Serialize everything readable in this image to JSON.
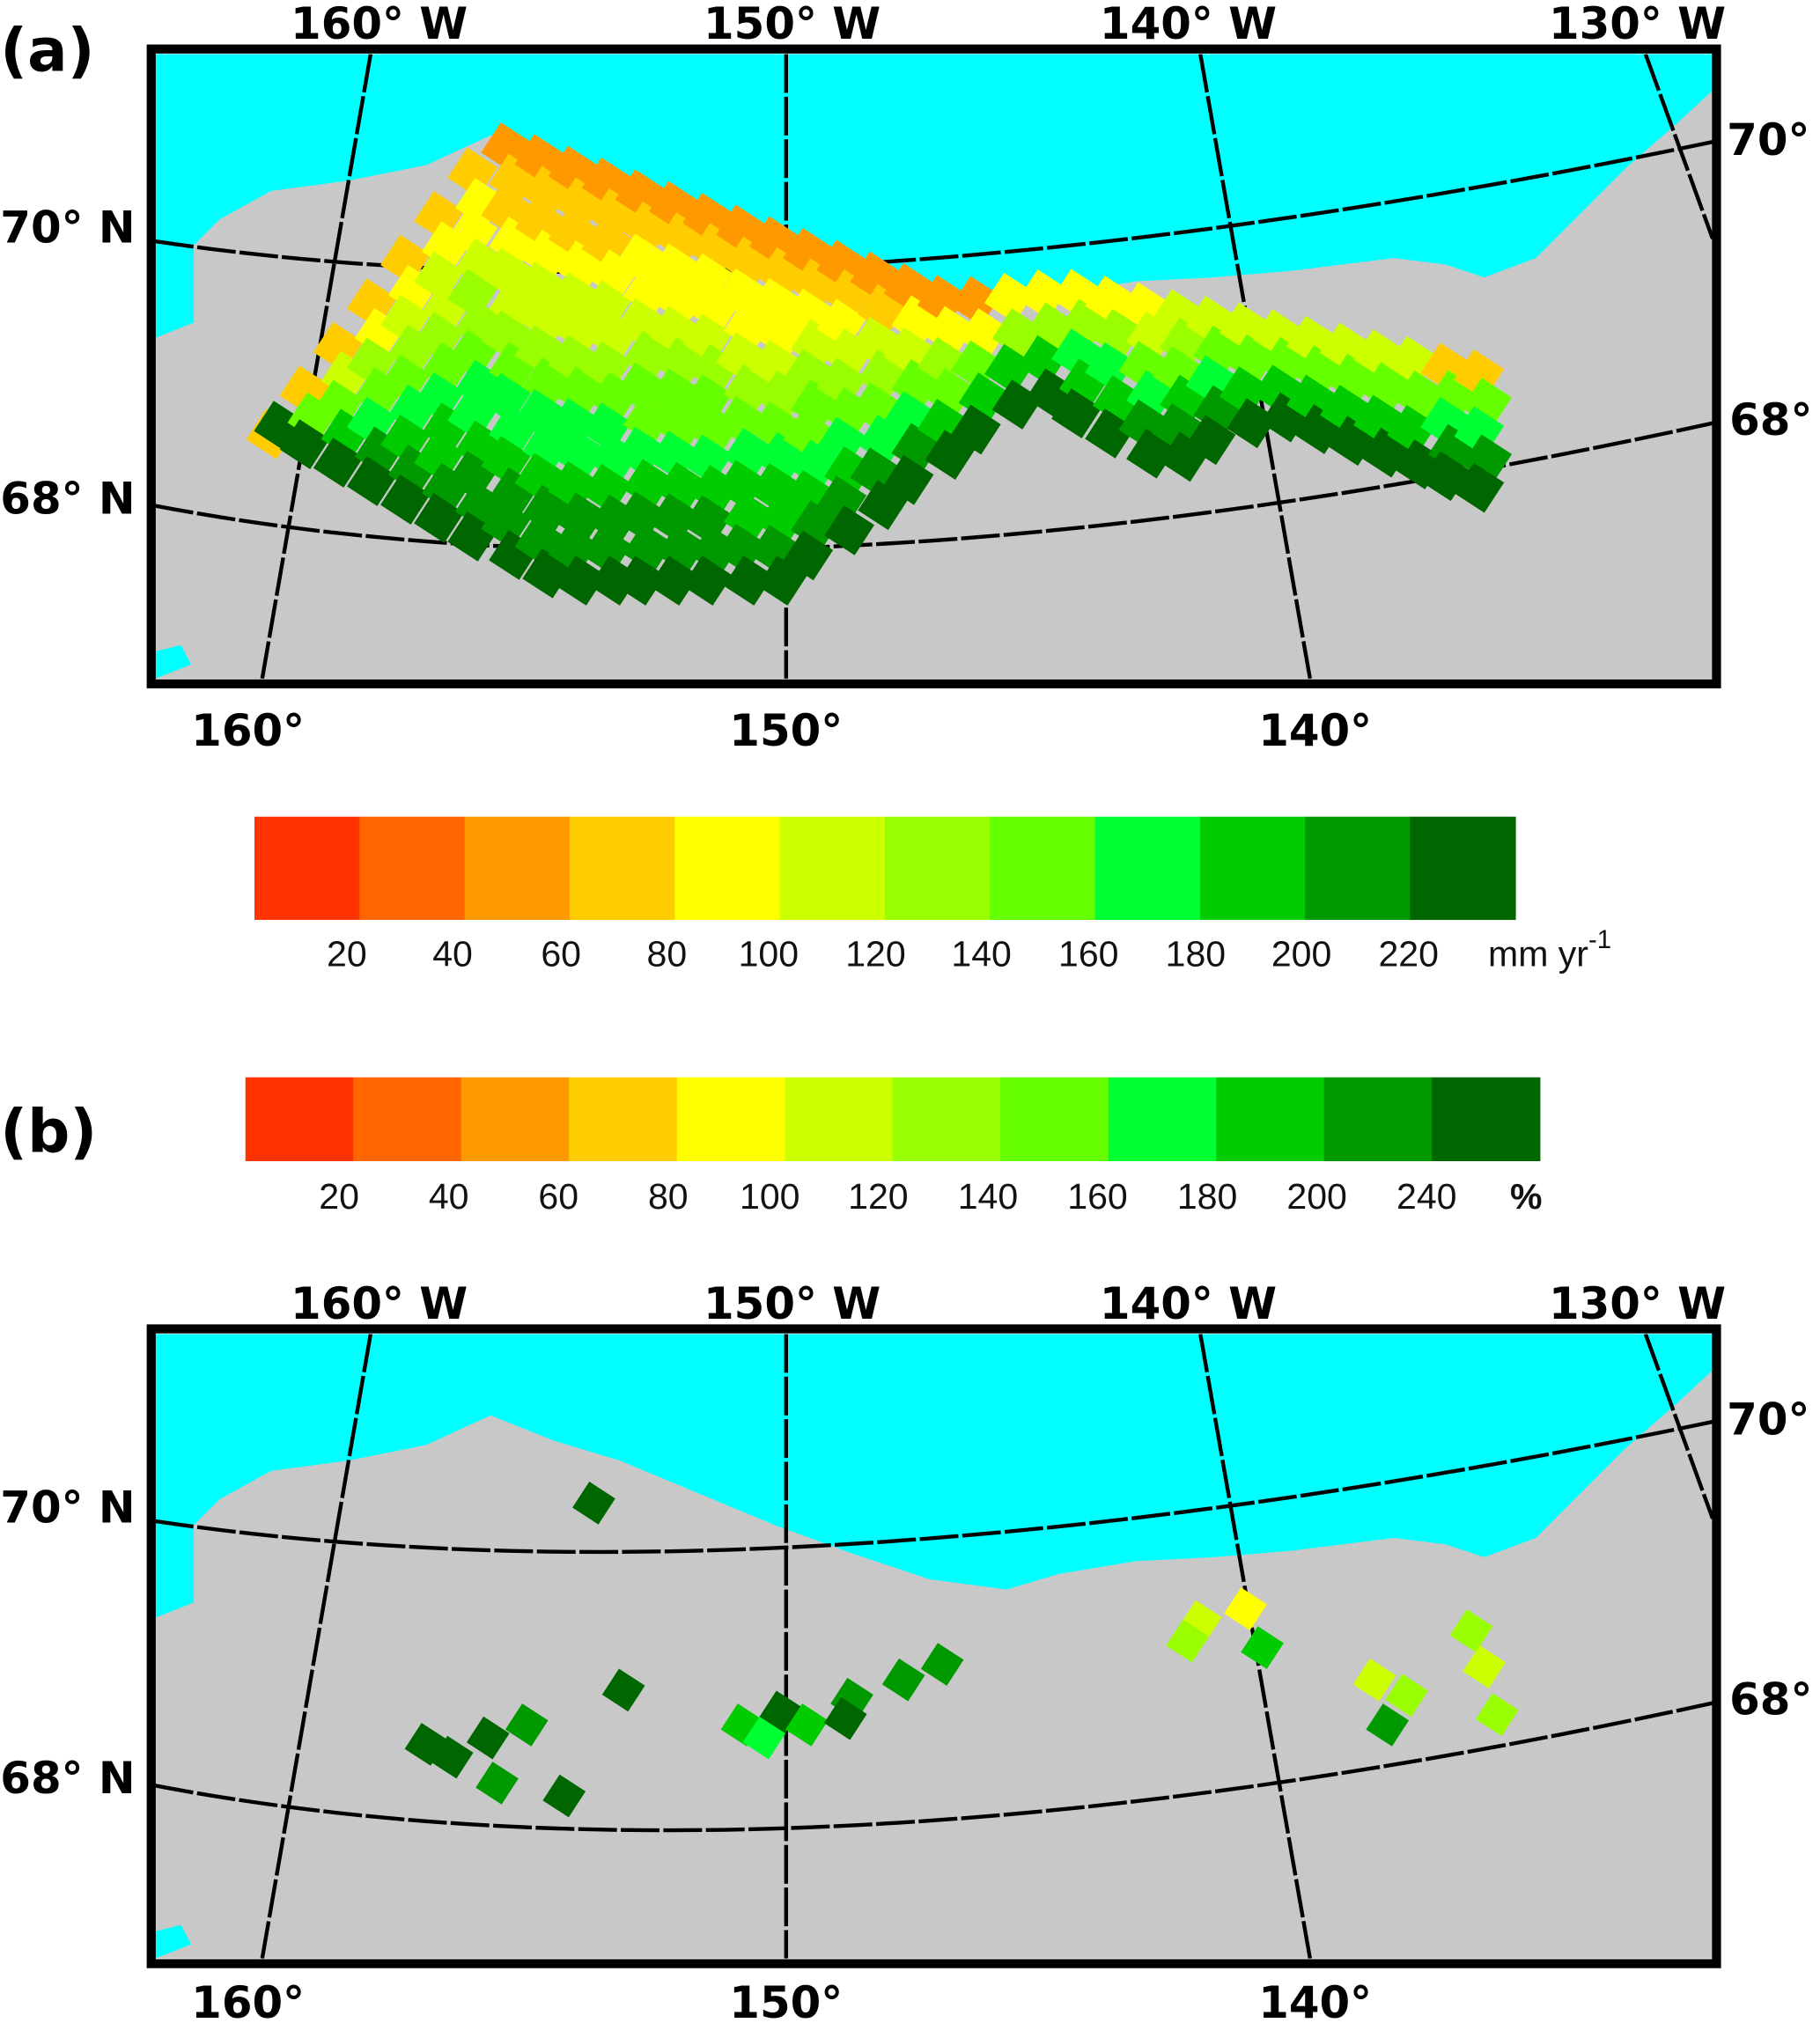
{
  "panels": [
    {
      "label": "(a)",
      "top_lon_labels": [
        "160° W",
        "150° W",
        "140° W",
        "130° W"
      ],
      "bottom_lon_labels": [
        "160°",
        "150°",
        "140°"
      ],
      "left_lat_labels": [
        "70° N",
        "68° N"
      ],
      "right_lat_labels": [
        "70°",
        "68°"
      ]
    },
    {
      "label": "(b)",
      "top_lon_labels": [
        "160° W",
        "150° W",
        "140° W",
        "130° W"
      ],
      "bottom_lon_labels": [
        "160°",
        "150°",
        "140°"
      ],
      "left_lat_labels": [
        "70° N",
        "68° N"
      ],
      "right_lat_labels": [
        "70°",
        "68°"
      ]
    }
  ],
  "colorbar_a": {
    "ticks": [
      "20",
      "40",
      "60",
      "80",
      "100",
      "120",
      "140",
      "160",
      "180",
      "200",
      "220"
    ],
    "unit": "mm yr",
    "unit_sup": "-1"
  },
  "colorbar_b": {
    "ticks": [
      "20",
      "40",
      "60",
      "80",
      "100",
      "120",
      "140",
      "160",
      "180",
      "200",
      "240"
    ],
    "unit": "%"
  },
  "colors": {
    "classes": [
      "#ff3300",
      "#ff6600",
      "#ff9900",
      "#ffcc00",
      "#ffff00",
      "#ccff00",
      "#99ff00",
      "#66ff00",
      "#00ff33",
      "#00cc00",
      "#009900",
      "#006600"
    ],
    "ocean": "#00ffff",
    "land": "#c8c8c8"
  }
}
